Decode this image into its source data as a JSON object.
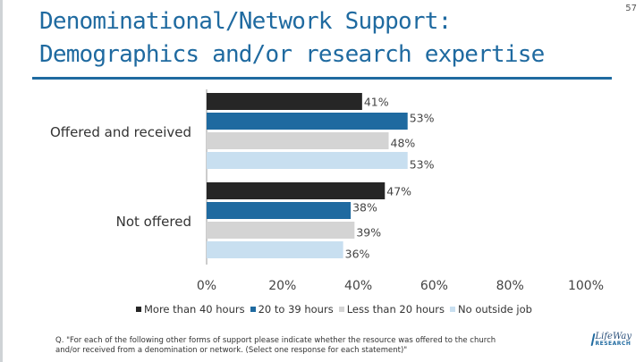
{
  "slide": {
    "title": "Denominational/Network Support: Demographics and/or research expertise",
    "page_number": "57",
    "footnote": "Q. \"For each of the following other forms of support please indicate whether the resource was offered to the church and/or received from a denomination or network. (Select one response for each statement)\"",
    "logo_top": "LifeWay",
    "logo_bottom": "RESEARCH"
  },
  "colors": {
    "title": "#1f6aa0",
    "series": [
      "#262626",
      "#1f6aa0",
      "#d4d4d4",
      "#c8dff0"
    ]
  },
  "chart_data": {
    "type": "bar",
    "orientation": "horizontal",
    "categories": [
      "Offered and received",
      "Not offered"
    ],
    "series": [
      {
        "name": "More than 40 hours",
        "values": [
          41,
          47
        ]
      },
      {
        "name": "20 to 39 hours",
        "values": [
          53,
          38
        ]
      },
      {
        "name": "Less than 20 hours",
        "values": [
          48,
          39
        ]
      },
      {
        "name": "No outside job",
        "values": [
          53,
          36
        ]
      }
    ],
    "value_suffix": "%",
    "xlim": [
      0,
      100
    ],
    "xticks": [
      "0%",
      "20%",
      "40%",
      "60%",
      "80%",
      "100%"
    ],
    "grid": false,
    "legend_position": "bottom"
  }
}
